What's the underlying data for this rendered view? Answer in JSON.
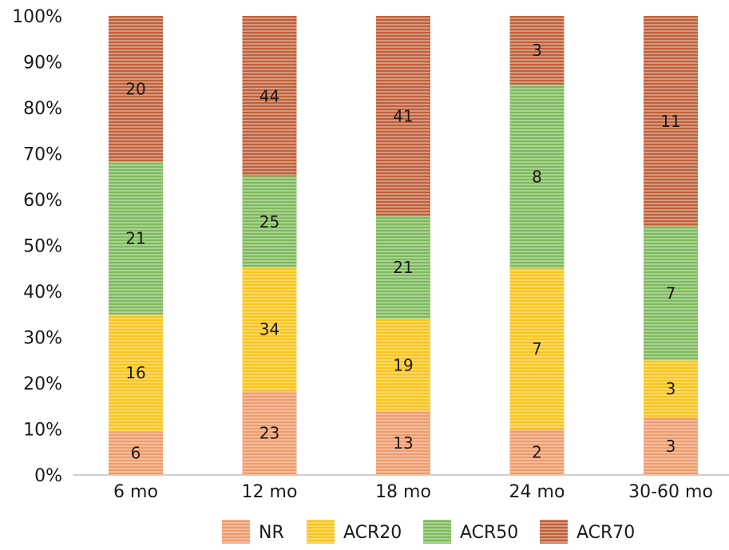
{
  "chart_data": {
    "type": "bar",
    "stacking": "percent",
    "categories": [
      "6 mo",
      "12 mo",
      "18 mo",
      "24 mo",
      "30-60 mo"
    ],
    "series": [
      {
        "name": "NR",
        "values": [
          6,
          23,
          13,
          2,
          3
        ],
        "color": "#ef9a6a"
      },
      {
        "name": "ACR20",
        "values": [
          16,
          34,
          19,
          7,
          3
        ],
        "color": "#fcc419"
      },
      {
        "name": "ACR50",
        "values": [
          21,
          25,
          21,
          8,
          7
        ],
        "color": "#7cba5a"
      },
      {
        "name": "ACR70",
        "values": [
          20,
          44,
          41,
          3,
          11
        ],
        "color": "#c0603a"
      }
    ],
    "y_ticks": [
      "0%",
      "10%",
      "20%",
      "30%",
      "40%",
      "50%",
      "60%",
      "70%",
      "80%",
      "90%",
      "100%"
    ],
    "ylim": [
      0,
      100
    ],
    "grid": false,
    "legend_position": "bottom",
    "bar_fill_pattern": "horizontal-stripes"
  }
}
